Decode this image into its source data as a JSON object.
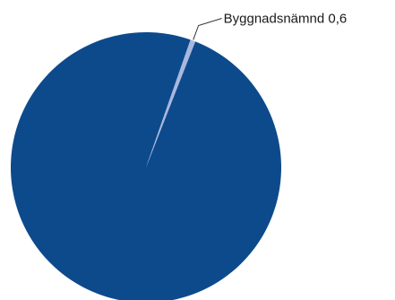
{
  "chart_data": {
    "type": "pie",
    "title": "",
    "slices": [
      {
        "label": "",
        "value": 99.4,
        "color": "#0d4a8c"
      },
      {
        "label": "Byggnadsnämnd 0,6",
        "value": 0.6,
        "color": "#a9b7de"
      }
    ],
    "label_placement": "outside with leader line"
  }
}
